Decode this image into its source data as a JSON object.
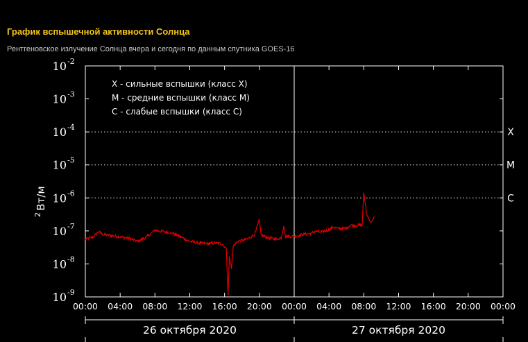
{
  "header": {
    "title": "График вспышечной активности Солнца",
    "subtitle": "Рентгеновское излучение Солнца вчера и сегодня по данным спутника GOES-16"
  },
  "colors": {
    "background": "#000000",
    "title": "#f5c518",
    "series": "#e00000",
    "axis": "#ffffff"
  },
  "chart_data": {
    "type": "line",
    "title": "График вспышечной активности Солнца",
    "ylabel": "Вт/м",
    "ylabel_sup": "2",
    "yscale": "log",
    "ylim": [
      1e-09,
      0.01
    ],
    "y_ticks": [
      {
        "base": "10",
        "exp": "-2",
        "value": 0.01
      },
      {
        "base": "10",
        "exp": "-3",
        "value": 0.001
      },
      {
        "base": "10",
        "exp": "-4",
        "value": 0.0001
      },
      {
        "base": "10",
        "exp": "-5",
        "value": 1e-05
      },
      {
        "base": "10",
        "exp": "-6",
        "value": 1e-06
      },
      {
        "base": "10",
        "exp": "-7",
        "value": 1e-07
      },
      {
        "base": "10",
        "exp": "-8",
        "value": 1e-08
      },
      {
        "base": "10",
        "exp": "-9",
        "value": 1e-09
      }
    ],
    "xlim": [
      0,
      48
    ],
    "x_ticks": [
      {
        "label": "00:00",
        "hour": 0
      },
      {
        "label": "04:00",
        "hour": 4
      },
      {
        "label": "08:00",
        "hour": 8
      },
      {
        "label": "12:00",
        "hour": 12
      },
      {
        "label": "16:00",
        "hour": 16
      },
      {
        "label": "20:00",
        "hour": 20
      },
      {
        "label": "00:00",
        "hour": 24
      },
      {
        "label": "04:00",
        "hour": 28
      },
      {
        "label": "08:00",
        "hour": 32
      },
      {
        "label": "12:00",
        "hour": 36
      },
      {
        "label": "16:00",
        "hour": 40
      },
      {
        "label": "20:00",
        "hour": 44
      },
      {
        "label": "00:00",
        "hour": 48
      }
    ],
    "days": [
      {
        "label": "26 октября 2020",
        "start": 0,
        "end": 24
      },
      {
        "label": "27 октября 2020",
        "start": 24,
        "end": 48
      }
    ],
    "class_levels": [
      {
        "label": "X",
        "value": 0.0001
      },
      {
        "label": "M",
        "value": 1e-05
      },
      {
        "label": "C",
        "value": 1e-06
      }
    ],
    "legend": [
      "X - сильные вспышки (класс X)",
      "M - средние вспышки (класс M)",
      "C - слабые вспышки (класс C)"
    ],
    "legend_position": "top-left",
    "series": [
      {
        "color": "#e00000",
        "points": [
          [
            0.0,
            5.5e-08
          ],
          [
            0.5,
            6e-08
          ],
          [
            1.0,
            6.8e-08
          ],
          [
            1.5,
            9.5e-08
          ],
          [
            2.0,
            7.8e-08
          ],
          [
            3.0,
            7.2e-08
          ],
          [
            4.0,
            6.6e-08
          ],
          [
            5.0,
            6e-08
          ],
          [
            6.0,
            4.8e-08
          ],
          [
            7.0,
            6.5e-08
          ],
          [
            7.5,
            8.2e-08
          ],
          [
            8.0,
            1.05e-07
          ],
          [
            9.0,
            9.5e-08
          ],
          [
            10.0,
            8.6e-08
          ],
          [
            11.0,
            6.5e-08
          ],
          [
            12.0,
            4.8e-08
          ],
          [
            13.0,
            4.3e-08
          ],
          [
            14.0,
            4.1e-08
          ],
          [
            15.0,
            4.3e-08
          ],
          [
            15.8,
            4e-08
          ],
          [
            16.2,
            2.8e-08
          ],
          [
            16.4,
            1.1e-09
          ],
          [
            16.55,
            1.8e-08
          ],
          [
            16.8,
            7e-09
          ],
          [
            17.0,
            3.5e-08
          ],
          [
            17.5,
            4.8e-08
          ],
          [
            18.5,
            5.5e-08
          ],
          [
            19.0,
            6.5e-08
          ],
          [
            19.5,
            8e-08
          ],
          [
            20.0,
            2.2e-07
          ],
          [
            20.2,
            7.5e-08
          ],
          [
            21.0,
            6.2e-08
          ],
          [
            22.0,
            5.6e-08
          ],
          [
            22.5,
            6.2e-08
          ],
          [
            22.8,
            1.4e-07
          ],
          [
            23.0,
            6.8e-08
          ],
          [
            24.0,
            6.8e-08
          ],
          [
            25.0,
            7.8e-08
          ],
          [
            26.0,
            8.5e-08
          ],
          [
            26.5,
            1e-07
          ],
          [
            27.0,
            9e-08
          ],
          [
            28.0,
            1.08e-07
          ],
          [
            28.5,
            1.3e-07
          ],
          [
            29.0,
            1.18e-07
          ],
          [
            30.0,
            1.2e-07
          ],
          [
            30.5,
            1.5e-07
          ],
          [
            31.0,
            1.45e-07
          ],
          [
            31.5,
            1.5e-07
          ],
          [
            31.8,
            1.4e-07
          ],
          [
            32.0,
            1.48e-06
          ],
          [
            32.3,
            3.5e-07
          ],
          [
            32.6,
            2.2e-07
          ],
          [
            32.8,
            1.8e-07
          ],
          [
            33.0,
            2e-07
          ],
          [
            33.2,
            2.8e-07
          ]
        ]
      }
    ]
  }
}
